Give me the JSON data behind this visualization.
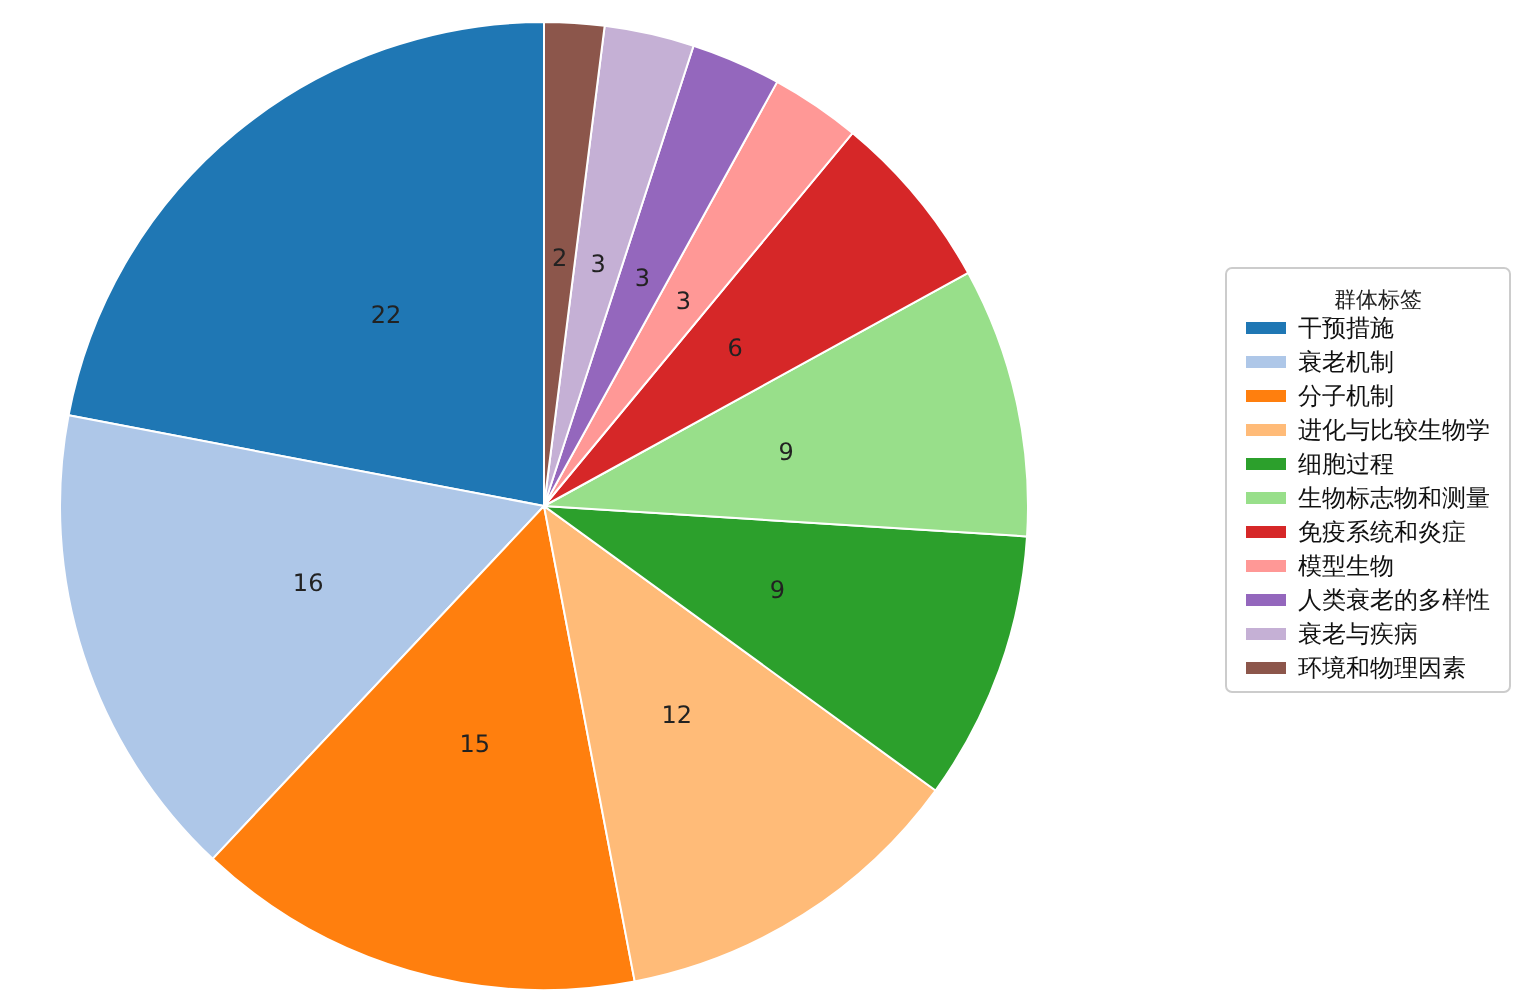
{
  "chart_data": {
    "type": "pie",
    "legend_title": "群体标签",
    "legend": "right",
    "data_labels": true,
    "categories": [
      "干预措施",
      "衰老机制",
      "分子机制",
      "进化与比较生物学",
      "细胞过程",
      "生物标志物和测量",
      "免疫系统和炎症",
      "模型生物",
      "人类衰老的多样性",
      "衰老与疾病",
      "环境和物理因素"
    ],
    "values": [
      22,
      16,
      15,
      12,
      9,
      9,
      6,
      3,
      3,
      3,
      2
    ],
    "colors": [
      "#1f77b4",
      "#aec7e8",
      "#ff7f0e",
      "#ffbb78",
      "#2ca02c",
      "#98df8a",
      "#d62728",
      "#ff9896",
      "#9467bd",
      "#c5b0d5",
      "#8c564b"
    ]
  }
}
